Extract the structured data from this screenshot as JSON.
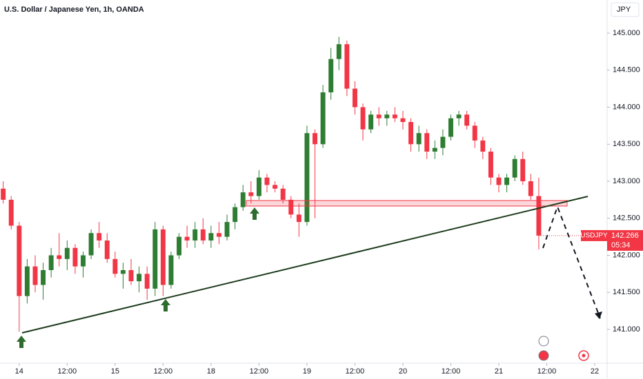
{
  "chart_data": {
    "type": "candlestick",
    "title": "U.S. Dollar / Japanese Yen, 1h, OANDA",
    "currency": "JPY",
    "countdown": "05:34",
    "x": [
      -4,
      -2,
      0,
      2,
      4,
      6,
      8,
      10,
      12,
      14,
      16,
      18,
      20,
      22,
      24,
      26,
      28,
      30,
      32,
      34,
      36,
      38,
      40,
      42,
      44,
      46,
      48,
      50,
      52,
      54,
      56,
      58,
      60,
      62,
      64,
      66,
      68,
      70,
      72,
      74,
      76,
      78,
      80,
      82,
      84,
      86,
      88,
      90,
      92,
      94,
      96,
      98,
      100,
      102,
      104,
      106,
      108,
      110,
      112,
      114,
      116,
      118,
      120,
      122,
      124,
      126,
      128,
      130
    ],
    "series": [
      {
        "name": "USDJPY",
        "up_color": "#2e7d32",
        "down_color": "#f23645",
        "open": [
          142.9,
          142.75,
          142.4,
          141.45,
          141.85,
          141.6,
          141.8,
          142.0,
          141.95,
          142.1,
          141.85,
          142.0,
          142.3,
          142.2,
          141.95,
          141.75,
          141.8,
          141.65,
          141.75,
          141.55,
          142.35,
          141.6,
          142.0,
          142.25,
          142.2,
          142.35,
          142.2,
          142.3,
          142.25,
          142.45,
          142.65,
          142.85,
          142.8,
          143.05,
          142.95,
          142.9,
          142.75,
          142.55,
          142.45,
          143.65,
          143.5,
          144.2,
          144.65,
          144.85,
          144.25,
          144.0,
          143.7,
          143.9,
          143.85,
          143.9,
          143.85,
          143.8,
          143.5,
          143.65,
          143.4,
          143.45,
          143.6,
          143.85,
          143.9,
          143.75,
          143.55,
          143.4,
          143.05,
          142.95,
          143.05,
          143.3,
          143.0,
          142.8
        ],
        "high": [
          143.0,
          142.8,
          142.45,
          141.95,
          142.0,
          141.9,
          142.1,
          142.3,
          142.2,
          142.15,
          142.05,
          142.35,
          142.45,
          142.3,
          142.05,
          141.9,
          141.95,
          141.85,
          141.85,
          142.45,
          142.4,
          142.05,
          142.3,
          142.4,
          142.45,
          142.5,
          142.4,
          142.45,
          142.55,
          142.7,
          142.95,
          143.0,
          143.15,
          143.1,
          143.0,
          142.95,
          142.8,
          142.7,
          143.75,
          143.7,
          144.3,
          144.8,
          144.95,
          144.9,
          144.35,
          144.05,
          143.95,
          144.0,
          143.95,
          144.0,
          143.95,
          143.85,
          143.75,
          143.7,
          143.55,
          143.7,
          143.9,
          143.95,
          143.95,
          143.8,
          143.6,
          143.45,
          143.1,
          143.1,
          143.35,
          143.4,
          143.1,
          143.05
        ],
        "low": [
          142.7,
          142.35,
          140.97,
          141.35,
          141.5,
          141.4,
          141.7,
          141.85,
          141.8,
          141.75,
          141.7,
          141.95,
          142.1,
          141.9,
          141.7,
          141.55,
          141.6,
          141.5,
          141.4,
          141.45,
          141.45,
          141.55,
          141.95,
          142.1,
          142.1,
          142.15,
          142.1,
          142.15,
          142.2,
          142.35,
          142.6,
          142.7,
          142.75,
          142.85,
          142.85,
          142.7,
          142.5,
          142.25,
          142.4,
          142.5,
          143.45,
          144.1,
          144.5,
          144.15,
          143.9,
          143.55,
          143.65,
          143.75,
          143.75,
          143.8,
          143.7,
          143.4,
          143.4,
          143.3,
          143.3,
          143.35,
          143.55,
          143.75,
          143.7,
          143.45,
          143.3,
          142.95,
          142.85,
          142.85,
          143.0,
          142.95,
          142.75,
          142.08
        ],
        "close": [
          142.75,
          142.4,
          141.45,
          141.85,
          141.6,
          141.8,
          142.0,
          141.95,
          142.1,
          141.85,
          142.0,
          142.3,
          142.2,
          141.95,
          141.75,
          141.8,
          141.65,
          141.75,
          141.55,
          142.35,
          141.6,
          142.0,
          142.25,
          142.2,
          142.35,
          142.2,
          142.3,
          142.25,
          142.45,
          142.65,
          142.85,
          142.8,
          143.05,
          142.95,
          142.9,
          142.75,
          142.55,
          142.45,
          143.65,
          143.5,
          144.2,
          144.65,
          144.85,
          144.25,
          144.0,
          143.7,
          143.9,
          143.85,
          143.9,
          143.85,
          143.8,
          143.5,
          143.65,
          143.4,
          143.45,
          143.6,
          143.85,
          143.9,
          143.75,
          143.55,
          143.4,
          143.05,
          142.95,
          143.05,
          143.3,
          143.0,
          142.8,
          142.266
        ]
      }
    ],
    "xlim": [
      -4.8,
      147.1
    ],
    "xticks": [
      {
        "value": 0,
        "label": "14"
      },
      {
        "value": 12,
        "label": "12:00"
      },
      {
        "value": 24,
        "label": "15"
      },
      {
        "value": 36,
        "label": "12:00"
      },
      {
        "value": 48,
        "label": "18"
      },
      {
        "value": 60,
        "label": "12:00"
      },
      {
        "value": 72,
        "label": "19"
      },
      {
        "value": 84,
        "label": "12:00"
      },
      {
        "value": 96,
        "label": "20"
      },
      {
        "value": 108,
        "label": "12:00"
      },
      {
        "value": 120,
        "label": "21"
      },
      {
        "value": 132,
        "label": "12:00"
      },
      {
        "value": 144,
        "label": "22"
      }
    ],
    "ylim": [
      140.544,
      145.447
    ],
    "yticks": [
      {
        "value": 141,
        "label": "141.000"
      },
      {
        "value": 141.5,
        "label": "141.500"
      },
      {
        "value": 142,
        "label": "142.000"
      },
      {
        "value": 142.5,
        "label": "142.500"
      },
      {
        "value": 143,
        "label": "143.000"
      },
      {
        "value": 143.5,
        "label": "143.500"
      },
      {
        "value": 144,
        "label": "144.000"
      },
      {
        "value": 144.5,
        "label": "144.500"
      },
      {
        "value": 145,
        "label": "145.000"
      }
    ],
    "grid": false
  }
}
